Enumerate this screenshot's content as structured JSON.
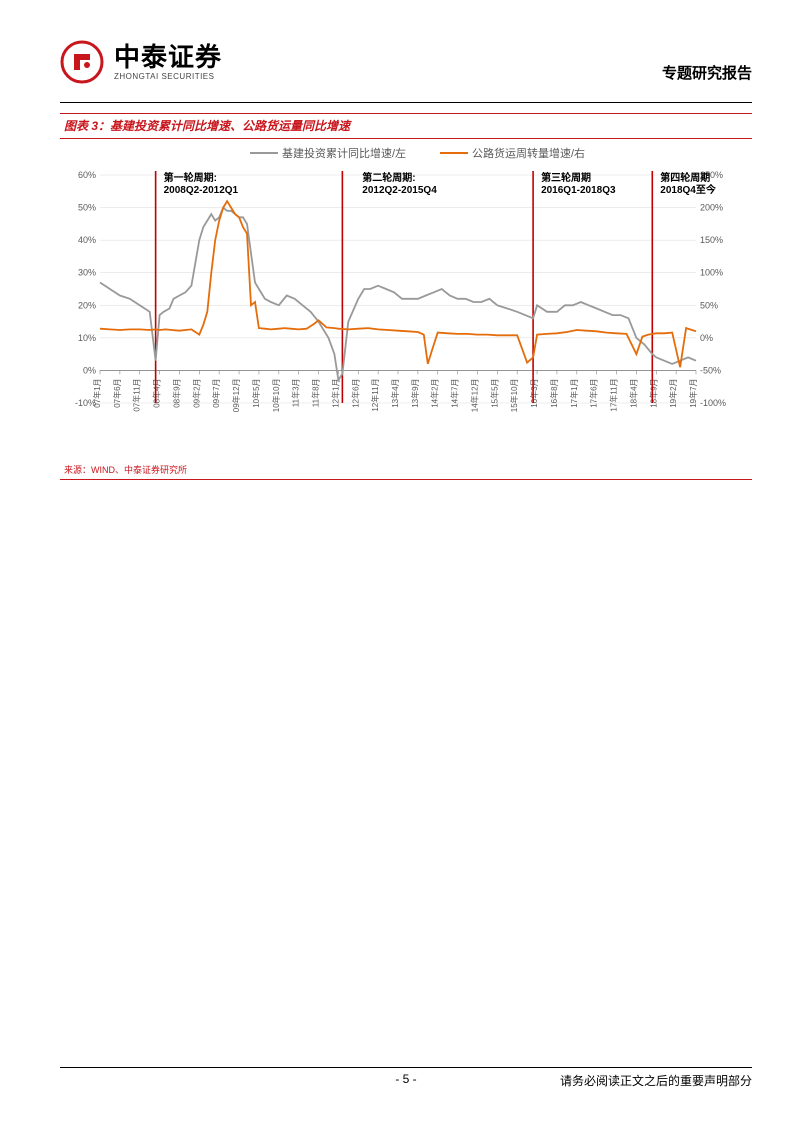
{
  "header": {
    "logo_cn": "中泰证券",
    "logo_en": "ZHONGTAI SECURITIES",
    "report_type": "专题研究报告"
  },
  "chart": {
    "title": "图表 3：基建投资累计同比增速、公路货运量同比增速",
    "source": "来源：WIND、中泰证券研究所",
    "legend": {
      "series1": "基建投资累计同比增速/左",
      "series2": "公路货运周转量增速/右"
    },
    "colors": {
      "series1": "#999999",
      "series2": "#e46c0a",
      "divider": "#c00000",
      "grid": "#d9d9d9",
      "axis_text": "#595959",
      "background": "#ffffff",
      "title": "#c8161d"
    },
    "y_left": {
      "min": -10,
      "max": 60,
      "step": 10,
      "ticks": [
        "-10%",
        "0%",
        "10%",
        "20%",
        "30%",
        "40%",
        "50%",
        "60%"
      ]
    },
    "y_right": {
      "min": -100,
      "max": 250,
      "step": 50,
      "ticks": [
        "-100%",
        "-50%",
        "0%",
        "50%",
        "100%",
        "150%",
        "200%",
        "250%"
      ]
    },
    "x_labels": [
      "07年1月",
      "07年6月",
      "07年11月",
      "08年4月",
      "08年9月",
      "09年2月",
      "09年7月",
      "09年12月",
      "10年5月",
      "10年10月",
      "11年3月",
      "11年8月",
      "12年1月",
      "12年6月",
      "12年11月",
      "13年4月",
      "13年9月",
      "14年2月",
      "14年7月",
      "14年12月",
      "15年5月",
      "15年10月",
      "16年3月",
      "16年8月",
      "17年1月",
      "17年6月",
      "17年11月",
      "18年4月",
      "18年9月",
      "19年2月",
      "19年7月"
    ],
    "annotations": [
      {
        "x": 3.0,
        "line1": "第一轮周期:",
        "line2": "2008Q2-2012Q1"
      },
      {
        "x": 13.0,
        "line1": "第二轮周期:",
        "line2": "2012Q2-2015Q4"
      },
      {
        "x": 22.0,
        "line1": "第三轮周期",
        "line2": "2016Q1-2018Q3"
      },
      {
        "x": 28.0,
        "line1": "第四轮周期",
        "line2": "2018Q4至今"
      }
    ],
    "dividers_x": [
      2.8,
      12.2,
      21.8,
      27.8
    ],
    "series1_data": [
      [
        0,
        27
      ],
      [
        0.5,
        25
      ],
      [
        1,
        23
      ],
      [
        1.5,
        22
      ],
      [
        2,
        20
      ],
      [
        2.5,
        18
      ],
      [
        2.8,
        3
      ],
      [
        3,
        17
      ],
      [
        3.2,
        18
      ],
      [
        3.5,
        19
      ],
      [
        3.7,
        22
      ],
      [
        4,
        23
      ],
      [
        4.3,
        24
      ],
      [
        4.6,
        26
      ],
      [
        5,
        40
      ],
      [
        5.2,
        44
      ],
      [
        5.4,
        46
      ],
      [
        5.6,
        48
      ],
      [
        5.8,
        46
      ],
      [
        6,
        47
      ],
      [
        6.2,
        50
      ],
      [
        6.4,
        49
      ],
      [
        6.6,
        49
      ],
      [
        6.8,
        48
      ],
      [
        7,
        47
      ],
      [
        7.2,
        47
      ],
      [
        7.4,
        45
      ],
      [
        7.8,
        27
      ],
      [
        8,
        25
      ],
      [
        8.3,
        22
      ],
      [
        8.6,
        21
      ],
      [
        9,
        20
      ],
      [
        9.4,
        23
      ],
      [
        9.8,
        22
      ],
      [
        10.2,
        20
      ],
      [
        10.6,
        18
      ],
      [
        11,
        15
      ],
      [
        11.5,
        10
      ],
      [
        11.8,
        5
      ],
      [
        12,
        -3
      ],
      [
        12.2,
        -1
      ],
      [
        12.5,
        15
      ],
      [
        13,
        22
      ],
      [
        13.3,
        25
      ],
      [
        13.6,
        25
      ],
      [
        14,
        26
      ],
      [
        14.4,
        25
      ],
      [
        14.8,
        24
      ],
      [
        15.2,
        22
      ],
      [
        15.6,
        22
      ],
      [
        16,
        22
      ],
      [
        16.4,
        23
      ],
      [
        16.8,
        24
      ],
      [
        17.2,
        25
      ],
      [
        17.6,
        23
      ],
      [
        18,
        22
      ],
      [
        18.4,
        22
      ],
      [
        18.8,
        21
      ],
      [
        19.2,
        21
      ],
      [
        19.6,
        22
      ],
      [
        20,
        20
      ],
      [
        20.5,
        19
      ],
      [
        21,
        18
      ],
      [
        21.4,
        17
      ],
      [
        21.8,
        16
      ],
      [
        22,
        20
      ],
      [
        22.5,
        18
      ],
      [
        23,
        18
      ],
      [
        23.4,
        20
      ],
      [
        23.8,
        20
      ],
      [
        24.2,
        21
      ],
      [
        24.6,
        20
      ],
      [
        25,
        19
      ],
      [
        25.4,
        18
      ],
      [
        25.8,
        17
      ],
      [
        26.2,
        17
      ],
      [
        26.6,
        16
      ],
      [
        27,
        10
      ],
      [
        27.4,
        8
      ],
      [
        27.8,
        5
      ],
      [
        28,
        4
      ],
      [
        28.4,
        3
      ],
      [
        28.8,
        2
      ],
      [
        29.2,
        3
      ],
      [
        29.6,
        4
      ],
      [
        30,
        3
      ]
    ],
    "series2_data": [
      [
        0,
        14
      ],
      [
        0.5,
        13
      ],
      [
        1,
        12
      ],
      [
        1.5,
        13
      ],
      [
        2,
        13
      ],
      [
        2.5,
        12
      ],
      [
        2.8,
        13
      ],
      [
        3,
        12
      ],
      [
        3.3,
        13
      ],
      [
        3.6,
        12
      ],
      [
        4,
        11
      ],
      [
        4.3,
        12
      ],
      [
        4.6,
        13
      ],
      [
        5,
        5
      ],
      [
        5.2,
        20
      ],
      [
        5.4,
        40
      ],
      [
        5.6,
        100
      ],
      [
        5.8,
        150
      ],
      [
        6,
        180
      ],
      [
        6.2,
        200
      ],
      [
        6.4,
        210
      ],
      [
        6.6,
        200
      ],
      [
        6.8,
        190
      ],
      [
        7,
        185
      ],
      [
        7.2,
        170
      ],
      [
        7.4,
        160
      ],
      [
        7.6,
        50
      ],
      [
        7.8,
        55
      ],
      [
        8,
        15
      ],
      [
        8.3,
        14
      ],
      [
        8.6,
        13
      ],
      [
        9,
        14
      ],
      [
        9.3,
        15
      ],
      [
        9.6,
        14
      ],
      [
        10,
        13
      ],
      [
        10.4,
        14
      ],
      [
        10.8,
        22
      ],
      [
        11,
        27
      ],
      [
        11.4,
        16
      ],
      [
        11.8,
        15
      ],
      [
        12,
        14
      ],
      [
        12.5,
        13
      ],
      [
        13,
        14
      ],
      [
        13.5,
        15
      ],
      [
        14,
        13
      ],
      [
        14.5,
        12
      ],
      [
        15,
        11
      ],
      [
        15.5,
        10
      ],
      [
        16,
        9
      ],
      [
        16.3,
        5
      ],
      [
        16.5,
        -40
      ],
      [
        16.7,
        -20
      ],
      [
        17,
        8
      ],
      [
        17.5,
        7
      ],
      [
        18,
        6
      ],
      [
        18.5,
        6
      ],
      [
        19,
        5
      ],
      [
        19.5,
        5
      ],
      [
        20,
        4
      ],
      [
        20.5,
        4
      ],
      [
        21,
        4
      ],
      [
        21.5,
        -38
      ],
      [
        21.8,
        -30
      ],
      [
        22,
        5
      ],
      [
        22.5,
        6
      ],
      [
        23,
        7
      ],
      [
        23.5,
        9
      ],
      [
        24,
        12
      ],
      [
        24.5,
        11
      ],
      [
        25,
        10
      ],
      [
        25.5,
        8
      ],
      [
        26,
        7
      ],
      [
        26.5,
        6
      ],
      [
        27,
        -25
      ],
      [
        27.3,
        2
      ],
      [
        27.6,
        5
      ],
      [
        28,
        7
      ],
      [
        28.4,
        7
      ],
      [
        28.8,
        8
      ],
      [
        29.2,
        -45
      ],
      [
        29.5,
        15
      ],
      [
        29.8,
        12
      ],
      [
        30,
        10
      ]
    ]
  },
  "footer": {
    "page": "- 5 -",
    "disclaimer": "请务必阅读正文之后的重要声明部分"
  }
}
